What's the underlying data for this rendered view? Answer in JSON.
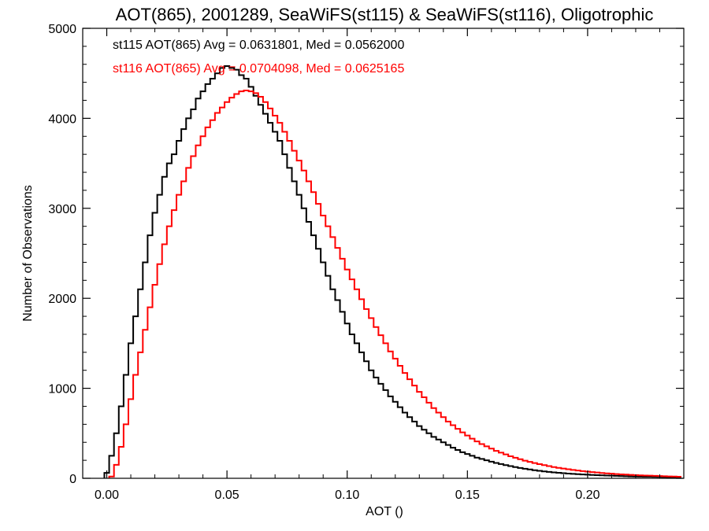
{
  "chart_data": {
    "type": "histogram-step",
    "title": "AOT(865), 2001289, SeaWiFS(st115) & SeaWiFS(st116), Oligotrophic",
    "xlabel": "AOT ()",
    "ylabel": "Number of Observations",
    "xlim": [
      -0.01,
      0.24
    ],
    "ylim": [
      0,
      5000
    ],
    "x_ticks": [
      0.0,
      0.05,
      0.1,
      0.15,
      0.2
    ],
    "x_tick_labels": [
      "0.00",
      "0.05",
      "0.10",
      "0.15",
      "0.20"
    ],
    "y_ticks": [
      0,
      1000,
      2000,
      3000,
      4000,
      5000
    ],
    "y_tick_labels": [
      "0",
      "1000",
      "2000",
      "3000",
      "4000",
      "5000"
    ],
    "grid": false,
    "series": [
      {
        "name": "st115",
        "color": "#000000",
        "annotation": "st115 AOT(865) Avg = 0.0631801, Med = 0.0562000",
        "points": [
          [
            0.0,
            60
          ],
          [
            0.002,
            250
          ],
          [
            0.004,
            500
          ],
          [
            0.006,
            800
          ],
          [
            0.008,
            1150
          ],
          [
            0.01,
            1500
          ],
          [
            0.012,
            1800
          ],
          [
            0.014,
            2100
          ],
          [
            0.016,
            2400
          ],
          [
            0.018,
            2700
          ],
          [
            0.02,
            2950
          ],
          [
            0.022,
            3150
          ],
          [
            0.024,
            3350
          ],
          [
            0.026,
            3500
          ],
          [
            0.028,
            3600
          ],
          [
            0.03,
            3750
          ],
          [
            0.032,
            3880
          ],
          [
            0.034,
            4000
          ],
          [
            0.036,
            4100
          ],
          [
            0.038,
            4220
          ],
          [
            0.04,
            4300
          ],
          [
            0.042,
            4380
          ],
          [
            0.044,
            4440
          ],
          [
            0.046,
            4500
          ],
          [
            0.048,
            4560
          ],
          [
            0.05,
            4580
          ],
          [
            0.052,
            4560
          ],
          [
            0.054,
            4540
          ],
          [
            0.056,
            4480
          ],
          [
            0.058,
            4440
          ],
          [
            0.06,
            4350
          ],
          [
            0.062,
            4250
          ],
          [
            0.064,
            4150
          ],
          [
            0.066,
            4050
          ],
          [
            0.068,
            3950
          ],
          [
            0.07,
            3850
          ],
          [
            0.072,
            3750
          ],
          [
            0.074,
            3600
          ],
          [
            0.076,
            3450
          ],
          [
            0.078,
            3300
          ],
          [
            0.08,
            3150
          ],
          [
            0.082,
            3000
          ],
          [
            0.084,
            2850
          ],
          [
            0.086,
            2700
          ],
          [
            0.088,
            2550
          ],
          [
            0.09,
            2400
          ],
          [
            0.092,
            2250
          ],
          [
            0.094,
            2100
          ],
          [
            0.096,
            1980
          ],
          [
            0.098,
            1850
          ],
          [
            0.1,
            1720
          ],
          [
            0.102,
            1600
          ],
          [
            0.104,
            1500
          ],
          [
            0.106,
            1400
          ],
          [
            0.108,
            1300
          ],
          [
            0.11,
            1200
          ],
          [
            0.112,
            1120
          ],
          [
            0.114,
            1050
          ],
          [
            0.116,
            980
          ],
          [
            0.118,
            910
          ],
          [
            0.12,
            850
          ],
          [
            0.122,
            790
          ],
          [
            0.124,
            730
          ],
          [
            0.126,
            680
          ],
          [
            0.128,
            630
          ],
          [
            0.13,
            580
          ],
          [
            0.132,
            540
          ],
          [
            0.134,
            500
          ],
          [
            0.136,
            460
          ],
          [
            0.138,
            430
          ],
          [
            0.14,
            400
          ],
          [
            0.142,
            370
          ],
          [
            0.144,
            340
          ],
          [
            0.146,
            315
          ],
          [
            0.148,
            290
          ],
          [
            0.15,
            270
          ],
          [
            0.152,
            250
          ],
          [
            0.154,
            230
          ],
          [
            0.156,
            215
          ],
          [
            0.158,
            200
          ],
          [
            0.16,
            185
          ],
          [
            0.162,
            170
          ],
          [
            0.164,
            158
          ],
          [
            0.166,
            146
          ],
          [
            0.168,
            135
          ],
          [
            0.17,
            125
          ],
          [
            0.172,
            115
          ],
          [
            0.174,
            106
          ],
          [
            0.176,
            98
          ],
          [
            0.178,
            90
          ],
          [
            0.18,
            83
          ],
          [
            0.182,
            77
          ],
          [
            0.184,
            71
          ],
          [
            0.186,
            66
          ],
          [
            0.188,
            61
          ],
          [
            0.19,
            57
          ],
          [
            0.192,
            53
          ],
          [
            0.194,
            49
          ],
          [
            0.196,
            46
          ],
          [
            0.198,
            43
          ],
          [
            0.2,
            40
          ],
          [
            0.202,
            37
          ],
          [
            0.204,
            35
          ],
          [
            0.206,
            33
          ],
          [
            0.208,
            31
          ],
          [
            0.21,
            29
          ],
          [
            0.212,
            27
          ],
          [
            0.214,
            25
          ],
          [
            0.216,
            23
          ],
          [
            0.218,
            21
          ],
          [
            0.22,
            20
          ],
          [
            0.222,
            19
          ],
          [
            0.224,
            18
          ],
          [
            0.226,
            17
          ],
          [
            0.228,
            16
          ],
          [
            0.23,
            15
          ],
          [
            0.232,
            14
          ],
          [
            0.234,
            13
          ],
          [
            0.236,
            12
          ],
          [
            0.238,
            11
          ]
        ]
      },
      {
        "name": "st116",
        "color": "#ff0000",
        "annotation": "st116 AOT(865) Avg = 0.0704098, Med = 0.0625165",
        "points": [
          [
            0.002,
            20
          ],
          [
            0.004,
            150
          ],
          [
            0.006,
            350
          ],
          [
            0.008,
            600
          ],
          [
            0.01,
            880
          ],
          [
            0.012,
            1150
          ],
          [
            0.014,
            1400
          ],
          [
            0.016,
            1650
          ],
          [
            0.018,
            1900
          ],
          [
            0.02,
            2150
          ],
          [
            0.022,
            2380
          ],
          [
            0.024,
            2600
          ],
          [
            0.026,
            2800
          ],
          [
            0.028,
            2980
          ],
          [
            0.03,
            3150
          ],
          [
            0.032,
            3300
          ],
          [
            0.034,
            3450
          ],
          [
            0.036,
            3580
          ],
          [
            0.038,
            3700
          ],
          [
            0.04,
            3800
          ],
          [
            0.042,
            3900
          ],
          [
            0.044,
            3980
          ],
          [
            0.046,
            4060
          ],
          [
            0.048,
            4120
          ],
          [
            0.05,
            4180
          ],
          [
            0.052,
            4230
          ],
          [
            0.054,
            4270
          ],
          [
            0.056,
            4300
          ],
          [
            0.058,
            4310
          ],
          [
            0.06,
            4300
          ],
          [
            0.062,
            4280
          ],
          [
            0.064,
            4240
          ],
          [
            0.066,
            4180
          ],
          [
            0.068,
            4110
          ],
          [
            0.07,
            4030
          ],
          [
            0.072,
            3950
          ],
          [
            0.074,
            3850
          ],
          [
            0.076,
            3750
          ],
          [
            0.078,
            3640
          ],
          [
            0.08,
            3530
          ],
          [
            0.082,
            3420
          ],
          [
            0.084,
            3300
          ],
          [
            0.086,
            3180
          ],
          [
            0.088,
            3050
          ],
          [
            0.09,
            2920
          ],
          [
            0.092,
            2800
          ],
          [
            0.094,
            2680
          ],
          [
            0.096,
            2560
          ],
          [
            0.098,
            2440
          ],
          [
            0.1,
            2320
          ],
          [
            0.102,
            2210
          ],
          [
            0.104,
            2100
          ],
          [
            0.106,
            1990
          ],
          [
            0.108,
            1880
          ],
          [
            0.11,
            1780
          ],
          [
            0.112,
            1680
          ],
          [
            0.114,
            1590
          ],
          [
            0.116,
            1500
          ],
          [
            0.118,
            1410
          ],
          [
            0.12,
            1330
          ],
          [
            0.122,
            1250
          ],
          [
            0.124,
            1170
          ],
          [
            0.126,
            1100
          ],
          [
            0.128,
            1030
          ],
          [
            0.13,
            960
          ],
          [
            0.132,
            900
          ],
          [
            0.134,
            840
          ],
          [
            0.136,
            780
          ],
          [
            0.138,
            730
          ],
          [
            0.14,
            680
          ],
          [
            0.142,
            630
          ],
          [
            0.144,
            590
          ],
          [
            0.146,
            550
          ],
          [
            0.148,
            510
          ],
          [
            0.15,
            475
          ],
          [
            0.152,
            440
          ],
          [
            0.154,
            410
          ],
          [
            0.156,
            380
          ],
          [
            0.158,
            355
          ],
          [
            0.16,
            330
          ],
          [
            0.162,
            305
          ],
          [
            0.164,
            285
          ],
          [
            0.166,
            265
          ],
          [
            0.168,
            245
          ],
          [
            0.17,
            228
          ],
          [
            0.172,
            212
          ],
          [
            0.174,
            196
          ],
          [
            0.176,
            182
          ],
          [
            0.178,
            169
          ],
          [
            0.18,
            157
          ],
          [
            0.182,
            146
          ],
          [
            0.184,
            135
          ],
          [
            0.186,
            125
          ],
          [
            0.188,
            116
          ],
          [
            0.19,
            108
          ],
          [
            0.192,
            100
          ],
          [
            0.194,
            93
          ],
          [
            0.196,
            86
          ],
          [
            0.198,
            80
          ],
          [
            0.2,
            74
          ],
          [
            0.202,
            69
          ],
          [
            0.204,
            64
          ],
          [
            0.206,
            59
          ],
          [
            0.208,
            55
          ],
          [
            0.21,
            51
          ],
          [
            0.212,
            47
          ],
          [
            0.214,
            44
          ],
          [
            0.216,
            41
          ],
          [
            0.218,
            38
          ],
          [
            0.22,
            35
          ],
          [
            0.222,
            33
          ],
          [
            0.224,
            31
          ],
          [
            0.226,
            29
          ],
          [
            0.228,
            27
          ],
          [
            0.23,
            25
          ],
          [
            0.232,
            23
          ],
          [
            0.234,
            21
          ],
          [
            0.236,
            20
          ],
          [
            0.238,
            18
          ]
        ]
      }
    ]
  }
}
